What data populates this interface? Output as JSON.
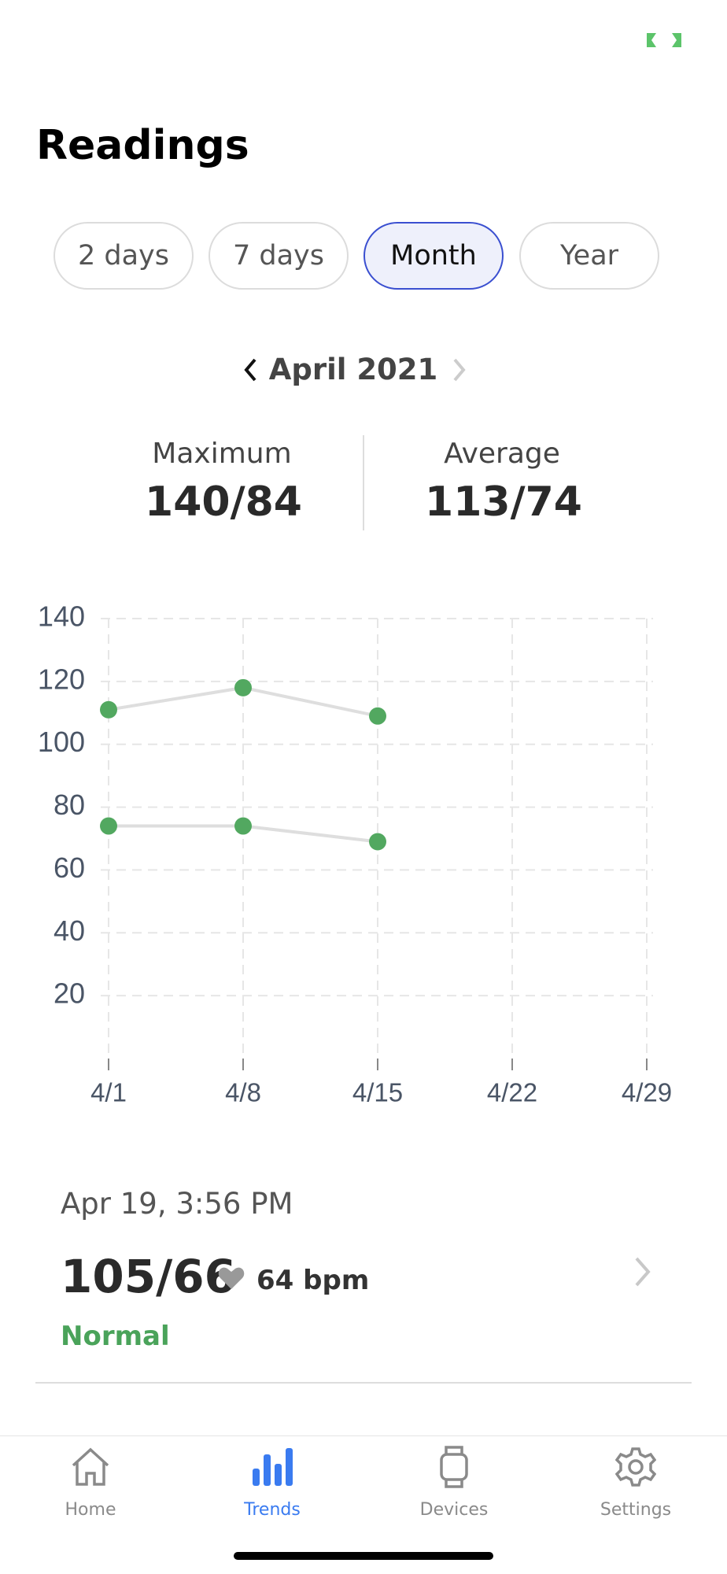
{
  "header": {
    "title": "Readings"
  },
  "tabs": [
    "2 days",
    "7 days",
    "Month",
    "Year"
  ],
  "period": "April 2021",
  "stats": [
    {
      "label": "Maximum",
      "value": "140/84"
    },
    {
      "label": "Average",
      "value": "113/74"
    }
  ],
  "chart_data": {
    "type": "line",
    "categories": [
      "4/1",
      "4/8",
      "4/15",
      "4/22",
      "4/29"
    ],
    "series": [
      {
        "color": "#52a860",
        "values": [
          111,
          118,
          109,
          null,
          null
        ]
      },
      {
        "color": "#52a860",
        "values": [
          74,
          74,
          69,
          null,
          null
        ]
      }
    ],
    "ylim": [
      0,
      140
    ],
    "yticks": [
      20,
      40,
      60,
      80,
      100,
      120,
      140
    ],
    "grid": true
  },
  "latest": {
    "time": "Apr 19, 3:56 PM",
    "value": "105/66",
    "pulse": "64 bpm",
    "status": "Normal"
  },
  "nav": [
    "Home",
    "Trends",
    "Devices",
    "Settings"
  ]
}
